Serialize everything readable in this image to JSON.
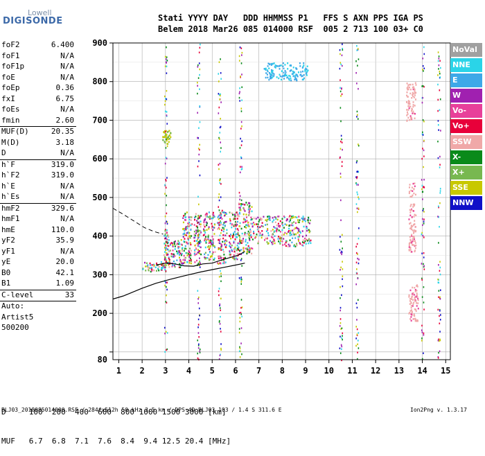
{
  "logo": {
    "top": "Lowell",
    "main": "DIGISONDE"
  },
  "header": {
    "line1": "Stati YYYY DAY   DDD HHMMSS P1   FFS S AXN PPS IGA PS",
    "line2": "Belem 2018 Mar26 085 014000 RSF  005 2 713 100 03+ C0"
  },
  "params_group1": [
    {
      "k": "foF2",
      "v": "6.400"
    },
    {
      "k": "foF1",
      "v": "N/A"
    },
    {
      "k": "foF1p",
      "v": "N/A"
    },
    {
      "k": "foE",
      "v": "N/A"
    },
    {
      "k": "foEp",
      "v": "0.36"
    },
    {
      "k": "fxI",
      "v": "6.75"
    },
    {
      "k": "foEs",
      "v": "N/A"
    },
    {
      "k": "fmin",
      "v": "2.60"
    }
  ],
  "params_group2": [
    {
      "k": "MUF(D)",
      "v": "20.35"
    },
    {
      "k": "M(D)",
      "v": "3.18"
    },
    {
      "k": "D",
      "v": "N/A"
    }
  ],
  "params_group3": [
    {
      "k": "h`F",
      "v": "319.0"
    },
    {
      "k": "h`F2",
      "v": "319.0"
    },
    {
      "k": "h`E",
      "v": "N/A"
    },
    {
      "k": "h`Es",
      "v": "N/A"
    }
  ],
  "params_group4": [
    {
      "k": "hmF2",
      "v": "329.6"
    },
    {
      "k": "hmF1",
      "v": "N/A"
    },
    {
      "k": "hmE",
      "v": "110.0"
    },
    {
      "k": "yF2",
      "v": "35.9"
    },
    {
      "k": "yF1",
      "v": "N/A"
    },
    {
      "k": "yE",
      "v": "20.0"
    },
    {
      "k": "B0",
      "v": "42.1"
    },
    {
      "k": "B1",
      "v": "1.09"
    }
  ],
  "params_group5": [
    {
      "k": "C-level",
      "v": "33"
    }
  ],
  "auto": {
    "line1": "Auto:",
    "line2": "Artist5",
    "line3": "500200"
  },
  "legend": [
    {
      "label": "NoVal",
      "color": "#a0a0a0"
    },
    {
      "label": "NNE",
      "color": "#2ad4e8"
    },
    {
      "label": "E",
      "color": "#3ea8e8"
    },
    {
      "label": "W",
      "color": "#a020b0"
    },
    {
      "label": "Vo-",
      "color": "#e8409a"
    },
    {
      "label": "Vo+",
      "color": "#e8003a"
    },
    {
      "label": "SSW",
      "color": "#f0a8a8"
    },
    {
      "label": "X-",
      "color": "#0a8a1a"
    },
    {
      "label": "X+",
      "color": "#78b850"
    },
    {
      "label": "SSE",
      "color": "#c8c800"
    },
    {
      "label": "NNW",
      "color": "#1010c8"
    }
  ],
  "mufTable": {
    "line1": "D     100  200  400  600  800 1000 1500 3000 [km]",
    "line2": "MUF   6.7  6.8  7.1  7.6  8.4  9.4 12.5 20.4 [MHz]"
  },
  "footer": {
    "left": "BLJ03_2018085014000.RSF / 284fx512h 50 kHz 2.5 km / DPS-4D BLJ03 103 / 1.4 S 311.6 E",
    "right": "Ion2Png v. 1.3.17"
  },
  "chart_data": {
    "type": "scatter",
    "title": "",
    "xlabel": "",
    "ylabel": "",
    "xlim": [
      0.75,
      15.2
    ],
    "ylim": [
      80,
      900
    ],
    "xticks": [
      1,
      2,
      3,
      4,
      5,
      6,
      7,
      8,
      9,
      10,
      11,
      12,
      13,
      14,
      15
    ],
    "yticks": [
      100,
      200,
      300,
      400,
      500,
      600,
      700,
      800,
      900
    ],
    "ytick_labels": [
      "",
      "200",
      "300",
      "400",
      "500",
      "600",
      "700",
      "800",
      "900"
    ],
    "y_min_label": "80",
    "grid": true,
    "echo_clusters": [
      {
        "x": [
          2.0,
          3.0
        ],
        "y": [
          310,
          335
        ]
      },
      {
        "x": [
          2.9,
          3.1
        ],
        "y": [
          330,
          420
        ]
      },
      {
        "x": [
          3.1,
          3.7
        ],
        "y": [
          320,
          395
        ]
      },
      {
        "x": [
          3.7,
          4.1
        ],
        "y": [
          330,
          465
        ]
      },
      {
        "x": [
          4.2,
          4.5
        ],
        "y": [
          330,
          460
        ]
      },
      {
        "x": [
          4.6,
          5.1
        ],
        "y": [
          340,
          465
        ]
      },
      {
        "x": [
          5.2,
          5.6
        ],
        "y": [
          330,
          470
        ]
      },
      {
        "x": [
          5.7,
          6.1
        ],
        "y": [
          340,
          465
        ]
      },
      {
        "x": [
          6.1,
          6.7
        ],
        "y": [
          355,
          490
        ]
      },
      {
        "x": [
          6.7,
          9.2
        ],
        "y": [
          375,
          455
        ]
      },
      {
        "x": [
          7.2,
          9.1
        ],
        "y": [
          805,
          850
        ]
      },
      {
        "x": [
          2.85,
          3.2
        ],
        "y": [
          640,
          675
        ]
      },
      {
        "x": [
          13.4,
          13.7
        ],
        "y": [
          360,
          540
        ]
      },
      {
        "x": [
          13.4,
          13.8
        ],
        "y": [
          180,
          280
        ]
      },
      {
        "x": [
          13.3,
          13.7
        ],
        "y": [
          700,
          800
        ]
      }
    ],
    "profile_curve": {
      "x": [
        0.75,
        1.2,
        2.0,
        2.6,
        3.2,
        3.6,
        4.0,
        4.5,
        5.0,
        5.5,
        6.0,
        6.4
      ],
      "y": [
        237,
        245,
        265,
        278,
        288,
        294,
        300,
        307,
        313,
        319,
        325,
        330
      ]
    },
    "trace_curve": {
      "x": [
        2.6,
        3.0,
        3.4,
        3.8,
        4.2,
        4.6,
        5.0,
        5.4,
        5.8,
        6.1,
        6.4
      ],
      "y": [
        325,
        330,
        328,
        323,
        322,
        328,
        330,
        338,
        345,
        350,
        360
      ]
    },
    "dashed_curve": {
      "x": [
        0.75,
        1.2,
        1.7,
        2.1,
        2.5,
        2.9
      ],
      "y": [
        472,
        456,
        437,
        422,
        412,
        405
      ]
    }
  }
}
